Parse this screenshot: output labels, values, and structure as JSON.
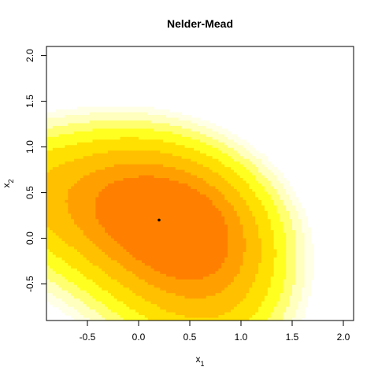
{
  "chart_data": {
    "type": "heatmap",
    "title": "Nelder-Mead",
    "xlabel_base": "x",
    "xlabel_sub": "1",
    "ylabel_base": "x",
    "ylabel_sub": "2",
    "xlim": [
      -0.9,
      2.1
    ],
    "ylim": [
      -0.9,
      2.1
    ],
    "x_ticks": [
      -0.5,
      0.0,
      0.5,
      1.0,
      1.5,
      2.0
    ],
    "x_tick_labels": [
      "-0.5",
      "0.0",
      "0.5",
      "1.0",
      "1.5",
      "2.0"
    ],
    "y_ticks": [
      -0.5,
      0.0,
      0.5,
      1.0,
      1.5,
      2.0
    ],
    "y_tick_labels": [
      "-0.5",
      "0.0",
      "0.5",
      "1.0",
      "1.5",
      "2.0"
    ],
    "grid": false,
    "level_colors": [
      "#ff8000",
      "#ffa000",
      "#ffc000",
      "#ffe000",
      "#ffff20",
      "#ffff70",
      "#ffffbe",
      "#ffffe6"
    ],
    "level_thresholds": [
      0.36,
      0.6,
      0.92,
      1.28,
      1.63,
      1.95,
      2.3,
      2.6
    ],
    "surface_center": [
      0.3,
      0.15
    ],
    "optimum_point": {
      "x": 0.2,
      "y": 0.2,
      "color": "#000000"
    }
  }
}
